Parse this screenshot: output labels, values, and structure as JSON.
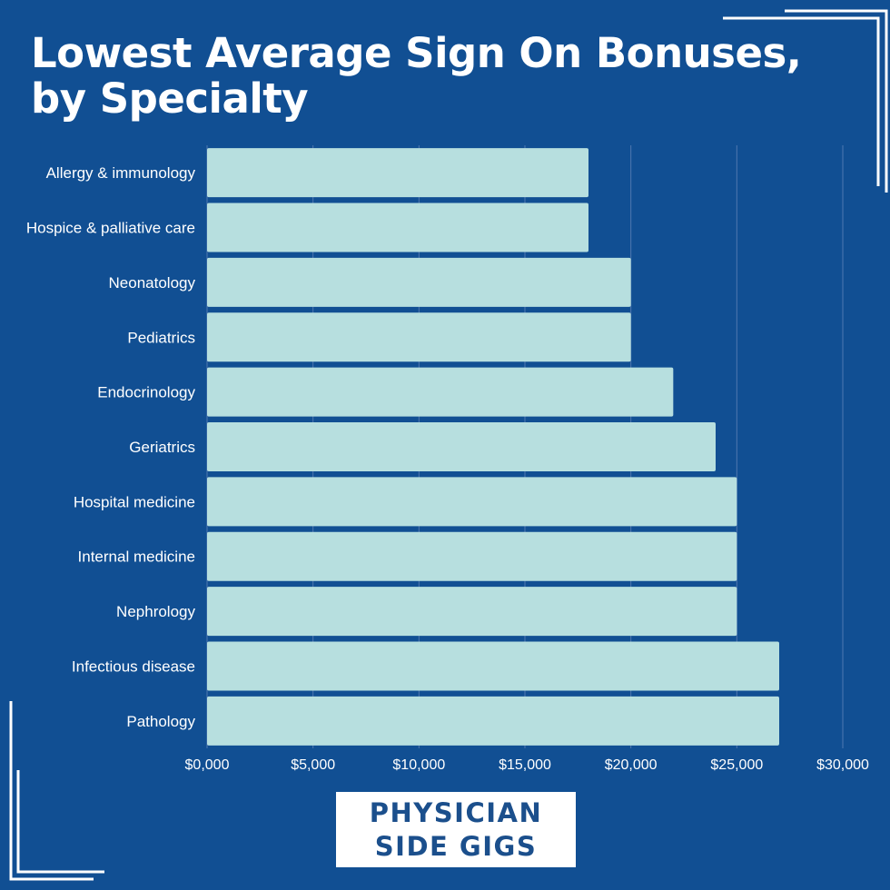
{
  "title": {
    "line1": "Lowest Average Sign On Bonuses,",
    "line2": "by Specialty"
  },
  "logo": {
    "line1": "PHYSICIAN",
    "line2": "SIDE GIGS"
  },
  "colors": {
    "background": "#114f93",
    "bar": "#b7dfdf",
    "text": "#ffffff",
    "grid": "#4f78b0",
    "logo_text": "#1b4f8c"
  },
  "chart_data": {
    "type": "bar",
    "orientation": "horizontal",
    "title": "Lowest Average Sign On Bonuses, by Specialty",
    "xlabel": "",
    "ylabel": "",
    "categories": [
      "Allergy & immunology",
      "Hospice & palliative care",
      "Neonatology",
      "Pediatrics",
      "Endocrinology",
      "Geriatrics",
      "Hospital medicine",
      "Internal medicine",
      "Nephrology",
      "Infectious disease",
      "Pathology"
    ],
    "values": [
      18000,
      18000,
      20000,
      20000,
      22000,
      24000,
      25000,
      25000,
      25000,
      27000,
      27000
    ],
    "xlim": [
      0,
      30000
    ],
    "xticks": [
      0,
      5000,
      10000,
      15000,
      20000,
      25000,
      30000
    ],
    "xtick_labels": [
      "$0,000",
      "$5,000",
      "$10,000",
      "$15,000",
      "$20,000",
      "$25,000",
      "$30,000"
    ],
    "grid": true
  }
}
